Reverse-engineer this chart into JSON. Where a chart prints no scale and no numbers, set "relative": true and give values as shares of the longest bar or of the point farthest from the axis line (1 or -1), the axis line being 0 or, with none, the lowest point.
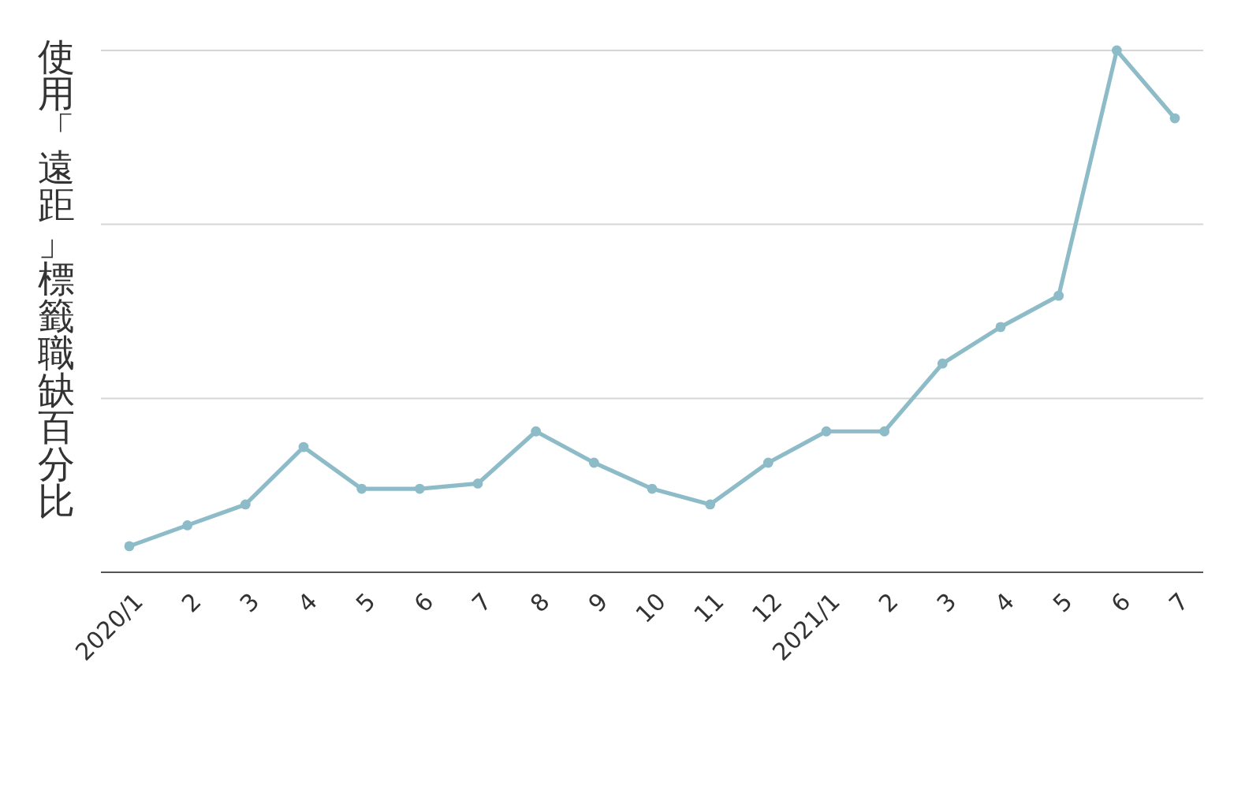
{
  "chart_data": {
    "type": "line",
    "ylabel": "使用「遠距」標籤職缺百分比",
    "relative": true,
    "categories": [
      "2020/1",
      "2",
      "3",
      "4",
      "5",
      "6",
      "7",
      "8",
      "9",
      "10",
      "11",
      "12",
      "2021/1",
      "2",
      "3",
      "4",
      "5",
      "6",
      "7"
    ],
    "series": [
      {
        "color": "#8dbcc8",
        "values": [
          0.05,
          0.09,
          0.13,
          0.24,
          0.16,
          0.16,
          0.17,
          0.27,
          0.21,
          0.16,
          0.13,
          0.21,
          0.27,
          0.27,
          0.4,
          0.47,
          0.53,
          1,
          0.87
        ]
      }
    ],
    "ref_lines": [
      {
        "axis": "y",
        "value": 0.333,
        "color": "#d6d6d6"
      },
      {
        "axis": "y",
        "value": 0.667,
        "color": "#d6d6d6"
      },
      {
        "axis": "y",
        "value": 1,
        "color": "#d6d6d6"
      }
    ],
    "marker": "circle",
    "line_style": "solid"
  }
}
